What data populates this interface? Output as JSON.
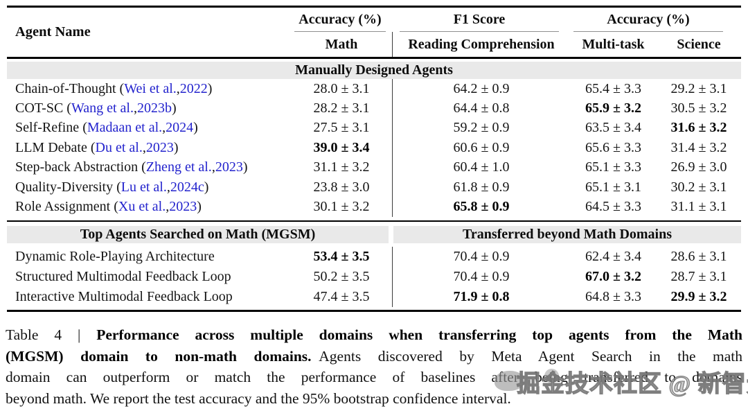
{
  "table": {
    "header": {
      "agent_name": "Agent Name",
      "group1": "Accuracy (%)",
      "group2": "F1 Score",
      "group3": "Accuracy (%)",
      "sub_math": "Math",
      "sub_reading": "Reading Comprehension",
      "sub_multitask": "Multi-task",
      "sub_science": "Science"
    },
    "band1": "Manually Designed Agents",
    "band2_left": "Top Agents Searched on Math (MGSM)",
    "band2_right": "Transferred beyond Math Domains",
    "section1_rows": [
      {
        "name": {
          "prefix": "Chain-of-Thought (",
          "author": "Wei et al.",
          "sep": ", ",
          "year": "2022",
          "suffix": ")"
        },
        "cells": [
          {
            "t": "28.0 ± 3.1",
            "b": false
          },
          {
            "t": "64.2 ± 0.9",
            "b": false
          },
          {
            "t": "65.4 ± 3.3",
            "b": false
          },
          {
            "t": "29.2 ± 3.1",
            "b": false
          }
        ]
      },
      {
        "name": {
          "prefix": "COT-SC (",
          "author": "Wang et al.",
          "sep": ", ",
          "year": "2023b",
          "suffix": ")"
        },
        "cells": [
          {
            "t": "28.2 ± 3.1",
            "b": false
          },
          {
            "t": "64.4 ± 0.8",
            "b": false
          },
          {
            "t": "65.9 ± 3.2",
            "b": true
          },
          {
            "t": "30.5 ± 3.2",
            "b": false
          }
        ]
      },
      {
        "name": {
          "prefix": "Self-Refine (",
          "author": "Madaan et al.",
          "sep": ", ",
          "year": "2024",
          "suffix": ")"
        },
        "cells": [
          {
            "t": "27.5 ± 3.1",
            "b": false
          },
          {
            "t": "59.2 ± 0.9",
            "b": false
          },
          {
            "t": "63.5 ± 3.4",
            "b": false
          },
          {
            "t": "31.6 ± 3.2",
            "b": true
          }
        ]
      },
      {
        "name": {
          "prefix": "LLM Debate (",
          "author": "Du et al.",
          "sep": ", ",
          "year": "2023",
          "suffix": ")"
        },
        "cells": [
          {
            "t": "39.0 ± 3.4",
            "b": true
          },
          {
            "t": "60.6 ± 0.9",
            "b": false
          },
          {
            "t": "65.6 ± 3.3",
            "b": false
          },
          {
            "t": "31.4 ± 3.2",
            "b": false
          }
        ]
      },
      {
        "name": {
          "prefix": "Step-back Abstraction (",
          "author": "Zheng et al.",
          "sep": ", ",
          "year": "2023",
          "suffix": ")"
        },
        "cells": [
          {
            "t": "31.1 ± 3.2",
            "b": false
          },
          {
            "t": "60.4 ± 1.0",
            "b": false
          },
          {
            "t": "65.1 ± 3.3",
            "b": false
          },
          {
            "t": "26.9 ± 3.0",
            "b": false
          }
        ]
      },
      {
        "name": {
          "prefix": "Quality-Diversity (",
          "author": "Lu et al.",
          "sep": ", ",
          "year": "2024c",
          "suffix": ")"
        },
        "cells": [
          {
            "t": "23.8 ± 3.0",
            "b": false
          },
          {
            "t": "61.8 ± 0.9",
            "b": false
          },
          {
            "t": "65.1 ± 3.1",
            "b": false
          },
          {
            "t": "30.2 ± 3.1",
            "b": false
          }
        ]
      },
      {
        "name": {
          "prefix": "Role Assignment (",
          "author": "Xu et al.",
          "sep": ", ",
          "year": "2023",
          "suffix": ")"
        },
        "cells": [
          {
            "t": "30.1 ± 3.2",
            "b": false
          },
          {
            "t": "65.8 ± 0.9",
            "b": true
          },
          {
            "t": "64.5 ± 3.3",
            "b": false
          },
          {
            "t": "31.1 ± 3.1",
            "b": false
          }
        ]
      }
    ],
    "section2_rows": [
      {
        "name": {
          "prefix": "Dynamic Role-Playing Architecture",
          "author": "",
          "sep": "",
          "year": "",
          "suffix": ""
        },
        "cells": [
          {
            "t": "53.4 ± 3.5",
            "b": true
          },
          {
            "t": "70.4 ± 0.9",
            "b": false
          },
          {
            "t": "62.4 ± 3.4",
            "b": false
          },
          {
            "t": "28.6 ± 3.1",
            "b": false
          }
        ]
      },
      {
        "name": {
          "prefix": "Structured Multimodal Feedback Loop",
          "author": "",
          "sep": "",
          "year": "",
          "suffix": ""
        },
        "cells": [
          {
            "t": "50.2 ± 3.5",
            "b": false
          },
          {
            "t": "70.4 ± 0.9",
            "b": false
          },
          {
            "t": "67.0 ± 3.2",
            "b": true
          },
          {
            "t": "28.7 ± 3.1",
            "b": false
          }
        ]
      },
      {
        "name": {
          "prefix": "Interactive Multimodal Feedback Loop",
          "author": "",
          "sep": "",
          "year": "",
          "suffix": ""
        },
        "cells": [
          {
            "t": "47.4 ± 3.5",
            "b": false
          },
          {
            "t": "71.9 ± 0.8",
            "b": true
          },
          {
            "t": "64.8 ± 3.3",
            "b": false
          },
          {
            "t": "29.9 ± 3.2",
            "b": true
          }
        ]
      }
    ]
  },
  "caption": {
    "lines": [
      [
        {
          "t": "Table 4 | ",
          "b": false
        },
        {
          "t": "Performance across multiple domains when transferring top agents from the Math",
          "b": true
        }
      ],
      [
        {
          "t": "(MGSM) domain to non-math domains.",
          "b": true
        },
        {
          "t": " Agents discovered by Meta Agent Search in the math",
          "b": false
        }
      ],
      [
        {
          "t": "domain can outperform or match the performance of baselines after being transferred to domains",
          "b": false
        }
      ],
      [
        {
          "t": "beyond math. We report the test accuracy and the 95% bootstrap confidence interval.",
          "b": false
        }
      ]
    ]
  },
  "watermark": {
    "text": "掘金技术社区 @ 新智元"
  }
}
